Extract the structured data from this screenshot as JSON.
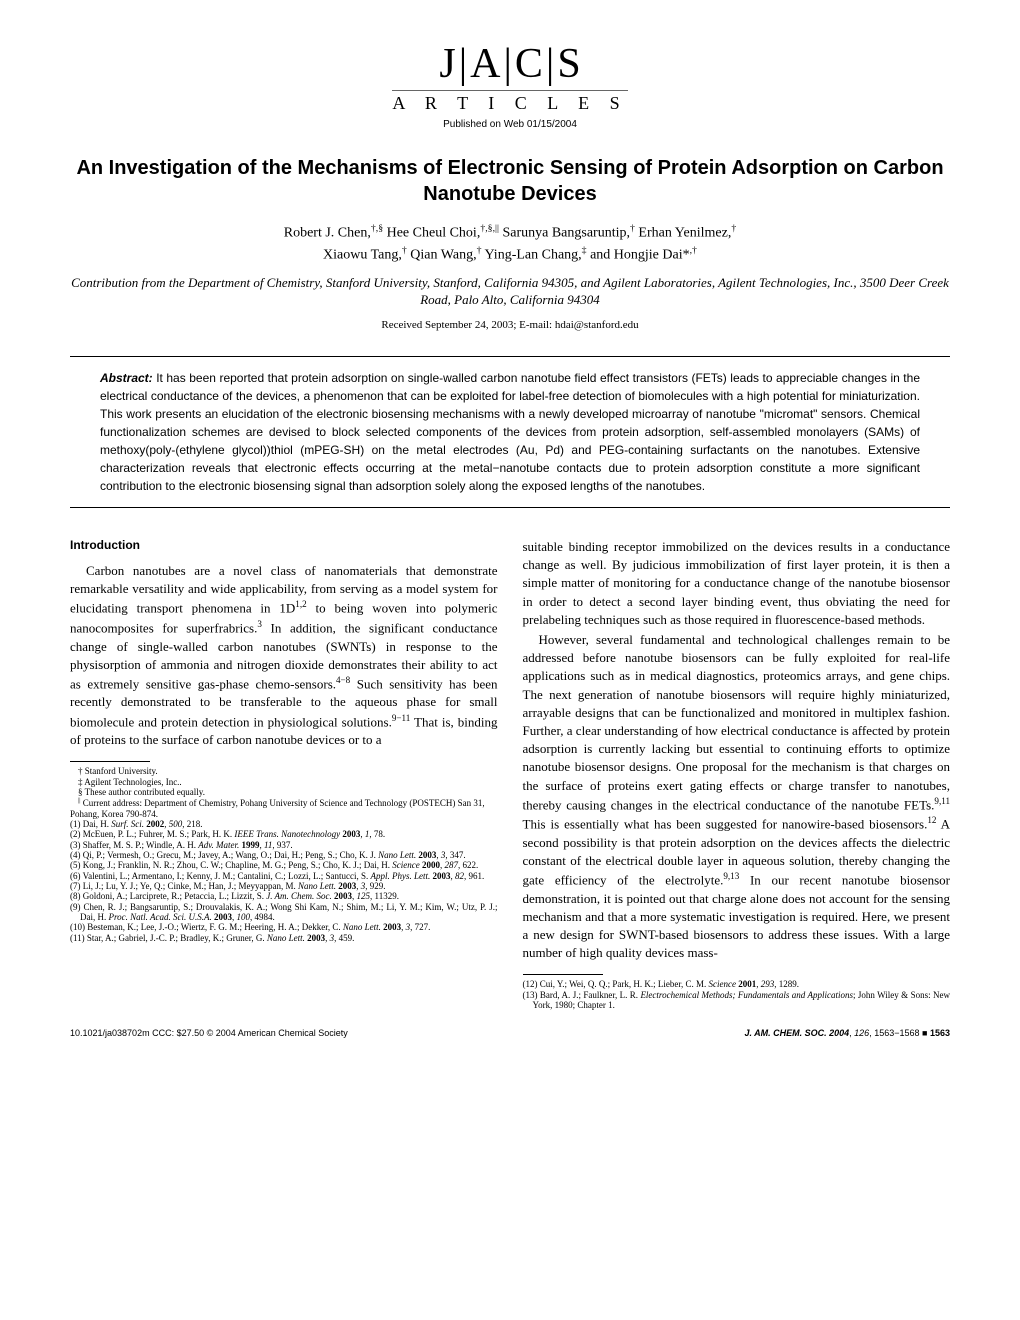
{
  "logo": {
    "main": "J|A|C|S",
    "sub": "A R T I C L E S"
  },
  "pubDate": "Published on Web 01/15/2004",
  "title": "An Investigation of the Mechanisms of Electronic Sensing of Protein Adsorption on Carbon Nanotube Devices",
  "authors": "Robert J. Chen,†,§ Hee Cheul Choi,†,§,|| Sarunya Bangsaruntip,† Erhan Yenilmez,† Xiaowu Tang,† Qian Wang,† Ying-Lan Chang,‡ and Hongjie Dai*,†",
  "affiliation": "Contribution from the Department of Chemistry, Stanford University, Stanford, California 94305, and Agilent Laboratories, Agilent Technologies, Inc., 3500 Deer Creek Road, Palo Alto, California 94304",
  "received": "Received September 24, 2003;  E-mail: hdai@stanford.edu",
  "abstract": {
    "label": "Abstract:",
    "text": "It has been reported that protein adsorption on single-walled carbon nanotube field effect transistors (FETs) leads to appreciable changes in the electrical conductance of the devices, a phenomenon that can be exploited for label-free detection of biomolecules with a high potential for miniaturization. This work presents an elucidation of the electronic biosensing mechanisms with a newly developed microarray of nanotube \"micromat\" sensors. Chemical functionalization schemes are devised to block selected components of the devices from protein adsorption, self-assembled monolayers (SAMs) of methoxy(poly-(ethylene glycol))thiol (mPEG-SH) on the metal electrodes (Au, Pd) and PEG-containing surfactants on the nanotubes. Extensive characterization reveals that electronic effects occurring at the metal−nanotube contacts due to protein adsorption constitute a more significant contribution to the electronic biosensing signal than adsorption solely along the exposed lengths of the nanotubes."
  },
  "introHead": "Introduction",
  "col1": {
    "p1": "Carbon nanotubes are a novel class of nanomaterials that demonstrate remarkable versatility and wide applicability, from serving as a model system for elucidating transport phenomena in 1D1,2 to being woven into polymeric nanocomposites for superfrabrics.3 In addition, the significant conductance change of single-walled carbon nanotubes (SWNTs) in response to the physisorption of ammonia and nitrogen dioxide demonstrates their ability to act as extremely sensitive gas-phase chemosensors.4−8 Such sensitivity has been recently demonstrated to be transferable to the aqueous phase for small biomolecule and protein detection in physiological solutions.9−11 That is, binding of proteins to the surface of carbon nanotube devices or to a"
  },
  "col2": {
    "p1": "suitable binding receptor immobilized on the devices results in a conductance change as well. By judicious immobilization of first layer protein, it is then a simple matter of monitoring for a conductance change of the nanotube biosensor in order to detect a second layer binding event, thus obviating the need for prelabeling techniques such as those required in fluorescence-based methods.",
    "p2": "However, several fundamental and technological challenges remain to be addressed before nanotube biosensors can be fully exploited for real-life applications such as in medical diagnostics, proteomics arrays, and gene chips. The next generation of nanotube biosensors will require highly miniaturized, arrayable designs that can be functionalized and monitored in multiplex fashion. Further, a clear understanding of how electrical conductance is affected by protein adsorption is currently lacking but essential to continuing efforts to optimize nanotube biosensor designs. One proposal for the mechanism is that charges on the surface of proteins exert gating effects or charge transfer to nanotubes, thereby causing changes in the electrical conductance of the nanotube FETs.9,11 This is essentially what has been suggested for nanowire-based biosensors.12 A second possibility is that protein adsorption on the devices affects the dielectric constant of the electrical double layer in aqueous solution, thereby changing the gate efficiency of the electrolyte.9,13 In our recent nanotube biosensor demonstration, it is pointed out that charge alone does not account for the sensing mechanism and that a more systematic investigation is required. Here, we present a new design for SWNT-based biosensors to address these issues. With a large number of high quality devices mass-"
  },
  "affnotes": [
    "† Stanford University.",
    "‡ Agilent Technologies, Inc..",
    "§ These author contributed equally.",
    "|| Current address: Department of Chemistry, Pohang University of Science and Technology (POSTECH) San 31, Pohang, Korea 790-874."
  ],
  "refs1": [
    "(1) Dai, H. Surf. Sci. 2002, 500, 218.",
    "(2) McEuen, P. L.; Fuhrer, M. S.; Park, H. K. IEEE Trans. Nanotechnology 2003, 1, 78.",
    "(3) Shaffer, M. S. P.; Windle, A. H. Adv. Mater. 1999, 11, 937.",
    "(4) Qi, P.; Vermesh, O.; Grecu, M.; Javey, A.; Wang, O.; Dai, H.; Peng, S.; Cho, K. J. Nano Lett. 2003, 3, 347.",
    "(5) Kong, J.; Franklin, N. R.; Zhou, C. W.; Chapline, M. G.; Peng, S.; Cho, K. J.; Dai, H. Science 2000, 287, 622.",
    "(6) Valentini, L.; Armentano, I.; Kenny, J. M.; Cantalini, C.; Lozzi, L.; Santucci, S. Appl. Phys. Lett. 2003, 82, 961.",
    "(7) Li, J.; Lu, Y. J.; Ye, Q.; Cinke, M.; Han, J.; Meyyappan, M. Nano Lett. 2003, 3, 929.",
    "(8) Goldoni, A.; Larciprete, R.; Petaccia, L.; Lizzit, S. J. Am. Chem. Soc. 2003, 125, 11329.",
    "(9) Chen, R. J.; Bangsaruntip, S.; Drouvalakis, K. A.; Wong Shi Kam, N.; Shim, M.; Li, Y. M.; Kim, W.; Utz, P. J.; Dai, H. Proc. Natl. Acad. Sci. U.S.A. 2003, 100, 4984.",
    "(10) Besteman, K.; Lee, J.-O.; Wiertz, F. G. M.; Heering, H. A.; Dekker, C. Nano Lett. 2003, 3, 727.",
    "(11) Star, A.; Gabriel, J.-C. P.; Bradley, K.; Gruner, G. Nano Lett. 2003, 3, 459."
  ],
  "refs2": [
    "(12) Cui, Y.; Wei, Q. Q.; Park, H. K.; Lieber, C. M. Science 2001, 293, 1289.",
    "(13) Bard, A. J.; Faulkner, L. R. Electrochemical Methods; Fundamentals and Applications; John Wiley & Sons: New York, 1980; Chapter 1."
  ],
  "footer": {
    "left": "10.1021/ja038702m CCC: $27.50 © 2004 American Chemical Society",
    "rightJournal": "J. AM. CHEM. SOC. 2004",
    "rightVol": ", 126,",
    "rightPages": " 1563−1568",
    "rightPage": "1563"
  }
}
